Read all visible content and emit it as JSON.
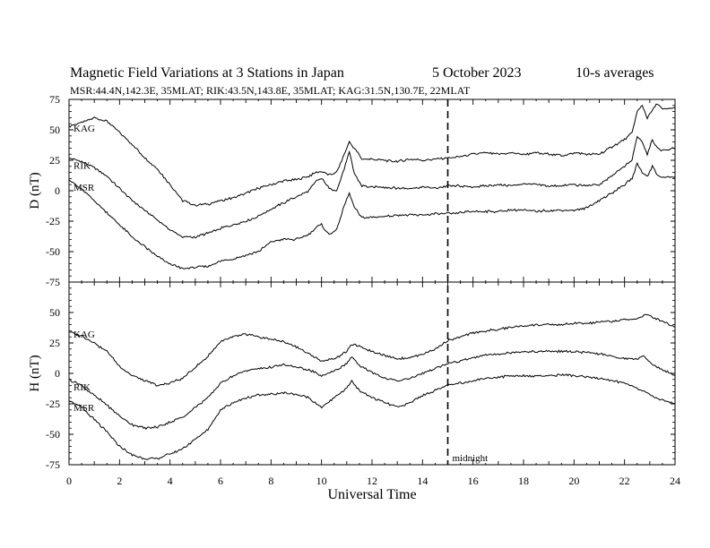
{
  "header": {
    "title": "Magnetic Field Variations at 3 Stations in Japan",
    "date": "5   October 2023",
    "averaging": "10-s averages",
    "stations_line": "MSR:44.4N,142.3E, 35MLAT;  RIK:43.5N,143.8E, 35MLAT;  KAG:31.5N,130.7E, 22MLAT"
  },
  "chart_data": [
    {
      "type": "line",
      "panel": "top",
      "ylabel": "D (nT)",
      "ylim": [
        -75,
        75
      ],
      "yticks": [
        "75",
        "50",
        "25",
        "0",
        "-25",
        "-50",
        "-75"
      ],
      "xlim": [
        0,
        24
      ],
      "grid": false,
      "x": [
        0,
        0.5,
        1,
        1.5,
        2,
        2.5,
        3,
        3.5,
        4,
        4.5,
        5,
        5.5,
        6,
        6.5,
        7,
        7.5,
        8,
        8.5,
        9,
        9.5,
        9.8,
        10,
        10.3,
        10.6,
        10.9,
        11.1,
        11.3,
        11.6,
        12,
        12.5,
        13,
        13.5,
        14,
        14.5,
        15,
        15.5,
        16,
        16.5,
        17,
        17.5,
        18,
        18.5,
        19,
        19.5,
        20,
        20.5,
        21,
        21.5,
        22,
        22.3,
        22.5,
        22.7,
        22.9,
        23.1,
        23.3,
        23.5,
        24
      ],
      "series": [
        {
          "name": "KAG",
          "values": [
            53,
            56,
            60,
            57,
            48,
            38,
            27,
            18,
            5,
            -8,
            -12,
            -11,
            -8,
            -6,
            -2,
            2,
            5,
            8,
            9,
            12,
            15,
            16,
            13,
            15,
            30,
            40,
            35,
            26,
            26,
            25,
            24,
            26,
            25,
            26,
            27,
            28,
            30,
            31,
            30,
            31,
            30,
            31,
            30,
            29,
            31,
            30,
            30,
            36,
            42,
            48,
            65,
            70,
            60,
            66,
            72,
            67,
            68
          ]
        },
        {
          "name": "RIK",
          "values": [
            27,
            24,
            19,
            12,
            2,
            -8,
            -16,
            -24,
            -32,
            -38,
            -38,
            -35,
            -31,
            -28,
            -25,
            -21,
            -15,
            -10,
            -5,
            0,
            8,
            10,
            2,
            0,
            18,
            32,
            14,
            4,
            3,
            3,
            2,
            2,
            3,
            2,
            4,
            4,
            3,
            4,
            5,
            4,
            6,
            5,
            4,
            4,
            5,
            4,
            5,
            12,
            20,
            25,
            45,
            40,
            30,
            42,
            35,
            33,
            35
          ]
        },
        {
          "name": "MSR",
          "values": [
            9,
            1,
            -8,
            -18,
            -28,
            -38,
            -46,
            -54,
            -60,
            -64,
            -63,
            -62,
            -58,
            -56,
            -53,
            -50,
            -42,
            -40,
            -40,
            -36,
            -30,
            -28,
            -36,
            -32,
            -12,
            -2,
            -14,
            -22,
            -22,
            -21,
            -20,
            -20,
            -20,
            -19,
            -19,
            -18,
            -17,
            -17,
            -17,
            -16,
            -16,
            -17,
            -16,
            -16,
            -16,
            -14,
            -8,
            -2,
            5,
            10,
            22,
            15,
            12,
            20,
            13,
            11,
            11
          ]
        }
      ]
    },
    {
      "type": "line",
      "panel": "bottom",
      "ylabel": "H (nT)",
      "xlabel": "Universal Time",
      "ylim": [
        -75,
        75
      ],
      "yticks": [
        "50",
        "25",
        "0",
        "-25",
        "-50",
        "-75"
      ],
      "xlim": [
        0,
        24
      ],
      "xticks": [
        "0",
        "2",
        "4",
        "6",
        "8",
        "10",
        "12",
        "14",
        "16",
        "18",
        "20",
        "22",
        "24"
      ],
      "grid": false,
      "x": [
        0,
        0.5,
        1,
        1.5,
        2,
        2.5,
        3,
        3.5,
        4,
        4.5,
        5,
        5.5,
        6,
        6.5,
        7,
        7.5,
        8,
        8.5,
        9,
        9.5,
        10,
        10.5,
        11,
        11.2,
        11.5,
        12,
        12.5,
        13,
        13.5,
        14,
        14.5,
        15,
        15.5,
        16,
        16.5,
        17,
        17.5,
        18,
        18.5,
        19,
        19.5,
        20,
        20.5,
        21,
        21.5,
        22,
        22.5,
        22.8,
        23,
        23.5,
        24
      ],
      "series": [
        {
          "name": "KAG",
          "values": [
            34,
            31,
            25,
            18,
            6,
            -2,
            -6,
            -10,
            -8,
            -4,
            5,
            14,
            26,
            30,
            32,
            30,
            28,
            26,
            22,
            16,
            10,
            12,
            18,
            24,
            22,
            18,
            15,
            12,
            13,
            16,
            20,
            27,
            30,
            33,
            35,
            36,
            38,
            39,
            40,
            40,
            40,
            41,
            41,
            42,
            43,
            44,
            45,
            48,
            47,
            43,
            38
          ]
        },
        {
          "name": "RIK",
          "values": [
            -5,
            -10,
            -18,
            -26,
            -35,
            -42,
            -45,
            -44,
            -40,
            -36,
            -28,
            -20,
            -8,
            -2,
            2,
            4,
            5,
            7,
            5,
            3,
            -2,
            2,
            8,
            14,
            6,
            1,
            -4,
            -6,
            -4,
            0,
            4,
            8,
            10,
            13,
            15,
            16,
            17,
            18,
            18,
            18,
            18,
            18,
            17,
            16,
            14,
            12,
            12,
            14,
            9,
            3,
            -2
          ]
        },
        {
          "name": "MSR",
          "values": [
            -22,
            -28,
            -38,
            -48,
            -60,
            -67,
            -70,
            -70,
            -66,
            -62,
            -54,
            -46,
            -30,
            -24,
            -20,
            -18,
            -17,
            -16,
            -17,
            -20,
            -28,
            -20,
            -12,
            -6,
            -14,
            -20,
            -24,
            -28,
            -24,
            -18,
            -14,
            -10,
            -8,
            -6,
            -4,
            -3,
            -2,
            -2,
            -2,
            -2,
            -1,
            -2,
            -3,
            -4,
            -6,
            -8,
            -12,
            -15,
            -18,
            -22,
            -25
          ]
        }
      ]
    }
  ],
  "annotations": {
    "marker_hour": 15,
    "marker_label": "midnight"
  }
}
